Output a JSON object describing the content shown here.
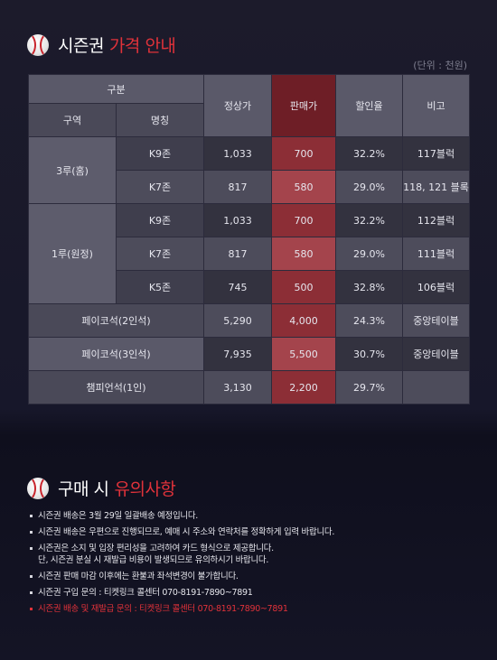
{
  "section1": {
    "title_white": "시즌권",
    "title_red": "가격 안내",
    "unit_note": "(단위 : 천원)"
  },
  "table": {
    "headers": {
      "group": "구분",
      "zone": "구역",
      "name": "명칭",
      "regular": "정상가",
      "sale": "판매가",
      "discount": "할인율",
      "note": "비고"
    },
    "rows": [
      {
        "zone": "3루(홈)",
        "name": "K9존",
        "regular": "1,033",
        "sale": "700",
        "discount": "32.2%",
        "note": "117블럭"
      },
      {
        "name": "K7존",
        "regular": "817",
        "sale": "580",
        "discount": "29.0%",
        "note": "118, 121 블록"
      },
      {
        "zone": "1루(원정)",
        "name": "K9존",
        "regular": "1,033",
        "sale": "700",
        "discount": "32.2%",
        "note": "112블럭"
      },
      {
        "name": "K7존",
        "regular": "817",
        "sale": "580",
        "discount": "29.0%",
        "note": "111블럭"
      },
      {
        "name": "K5존",
        "regular": "745",
        "sale": "500",
        "discount": "32.8%",
        "note": "106블럭"
      },
      {
        "merged": "페이코석(2인석)",
        "regular": "5,290",
        "sale": "4,000",
        "discount": "24.3%",
        "note": "중앙테이블"
      },
      {
        "merged": "페이코석(3인석)",
        "regular": "7,935",
        "sale": "5,500",
        "discount": "30.7%",
        "note": "중앙테이블"
      },
      {
        "merged": "챔피언석(1인)",
        "regular": "3,130",
        "sale": "2,200",
        "discount": "29.7%",
        "note": ""
      }
    ]
  },
  "section2": {
    "title_white": "구매 시",
    "title_red": "유의사항"
  },
  "notes": [
    {
      "text": "시즌권 배송은 3월 29일 일괄배송 예정입니다."
    },
    {
      "text": "시즌권 배송은 우편으로 진행되므로, 예매 시 주소와 연락처를 정확하게 입력 바랍니다."
    },
    {
      "text": "시즌권은 소지 및 입장 편리성을 고려하여 카드 형식으로 제공합니다.",
      "text2": "단, 시즌권 분실 시 재발급 비용이 발생되므로 유의하시기 바랍니다."
    },
    {
      "text": "시즌권 판매 마감 이후에는 환불과 좌석변경이 불가합니다."
    },
    {
      "text": "시즌권 구입 문의 : 티켓링크 콜센터 070-8191-7890~7891"
    },
    {
      "text": "시즌권 배송 및 재발급 문의 : 티켓링크 콜센터 070-8191-7890~7891"
    }
  ],
  "colors": {
    "accent_red": "#e0323a",
    "sale_column": "#8c2e36",
    "background": "#1c1b2b"
  },
  "icons": [
    "baseball-icon"
  ]
}
